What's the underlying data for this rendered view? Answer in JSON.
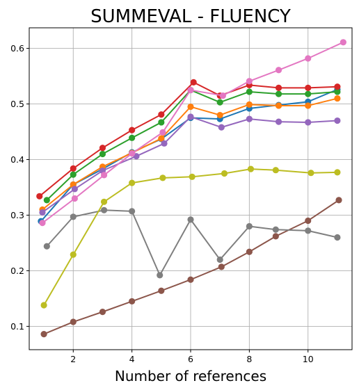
{
  "chart_data": {
    "type": "line",
    "title": "SUMMEVAL - FLUENCY",
    "xlabel": "Number of references",
    "ylabel": "",
    "xlim": [
      0.5,
      11.5
    ],
    "ylim": [
      0.058,
      0.637
    ],
    "xticks": [
      2,
      4,
      6,
      8,
      10
    ],
    "yticks": [
      0.1,
      0.2,
      0.3,
      0.4,
      0.5,
      0.6
    ],
    "grid": true,
    "x": [
      1,
      2,
      3,
      4,
      5,
      6,
      7,
      8,
      9,
      10,
      11
    ],
    "series": [
      {
        "color": "#1f77b4",
        "x": [
          0.9,
          2,
          3,
          4,
          5,
          6,
          7,
          8,
          9,
          10,
          11
        ],
        "values": [
          0.289,
          0.355,
          0.383,
          0.413,
          0.437,
          0.475,
          0.473,
          0.492,
          0.498,
          0.504,
          0.526
        ]
      },
      {
        "color": "#ff7f0e",
        "x": [
          0.95,
          2,
          3,
          4,
          5,
          6,
          7,
          8,
          9,
          10,
          11
        ],
        "values": [
          0.31,
          0.355,
          0.387,
          0.412,
          0.438,
          0.495,
          0.48,
          0.499,
          0.497,
          0.497,
          0.51
        ]
      },
      {
        "color": "#2ca02c",
        "x": [
          1.1,
          2,
          3,
          4,
          5,
          6,
          7,
          8,
          9,
          10,
          11
        ],
        "values": [
          0.327,
          0.373,
          0.41,
          0.439,
          0.467,
          0.525,
          0.503,
          0.522,
          0.518,
          0.518,
          0.522
        ]
      },
      {
        "color": "#d62728",
        "x": [
          0.85,
          2,
          3,
          4,
          5,
          6.1,
          7,
          8,
          9,
          10,
          11
        ],
        "values": [
          0.334,
          0.384,
          0.421,
          0.453,
          0.481,
          0.539,
          0.515,
          0.534,
          0.529,
          0.529,
          0.531
        ]
      },
      {
        "color": "#9467bd",
        "x": [
          0.95,
          2.05,
          3,
          4.15,
          5.1,
          6,
          7.05,
          8,
          9,
          10,
          11
        ],
        "values": [
          0.305,
          0.347,
          0.38,
          0.406,
          0.429,
          0.477,
          0.458,
          0.473,
          0.468,
          0.467,
          0.47
        ]
      },
      {
        "color": "#8c564b",
        "x": [
          1,
          2,
          3,
          4,
          5,
          6,
          7.05,
          8,
          8.9,
          10,
          11.05
        ],
        "values": [
          0.086,
          0.108,
          0.126,
          0.145,
          0.164,
          0.184,
          0.207,
          0.234,
          0.262,
          0.29,
          0.327
        ]
      },
      {
        "color": "#e377c2",
        "x": [
          0.95,
          2.05,
          3.05,
          4,
          5.05,
          6,
          7.1,
          8,
          9,
          10,
          11.2
        ],
        "values": [
          0.286,
          0.33,
          0.372,
          0.411,
          0.449,
          0.525,
          0.515,
          0.541,
          0.561,
          0.582,
          0.611
        ]
      },
      {
        "color": "#7f7f7f",
        "x": [
          1.1,
          2,
          3.05,
          4,
          4.95,
          6,
          7,
          8,
          8.9,
          10,
          11
        ],
        "values": [
          0.244,
          0.297,
          0.309,
          0.307,
          0.192,
          0.292,
          0.22,
          0.28,
          0.274,
          0.272,
          0.26
        ]
      },
      {
        "color": "#bcbd22",
        "x": [
          1,
          2,
          3.05,
          4,
          5.05,
          6.05,
          7.15,
          8.05,
          8.9,
          10.1,
          11
        ],
        "values": [
          0.138,
          0.229,
          0.324,
          0.358,
          0.367,
          0.369,
          0.375,
          0.383,
          0.381,
          0.376,
          0.377
        ]
      }
    ]
  }
}
